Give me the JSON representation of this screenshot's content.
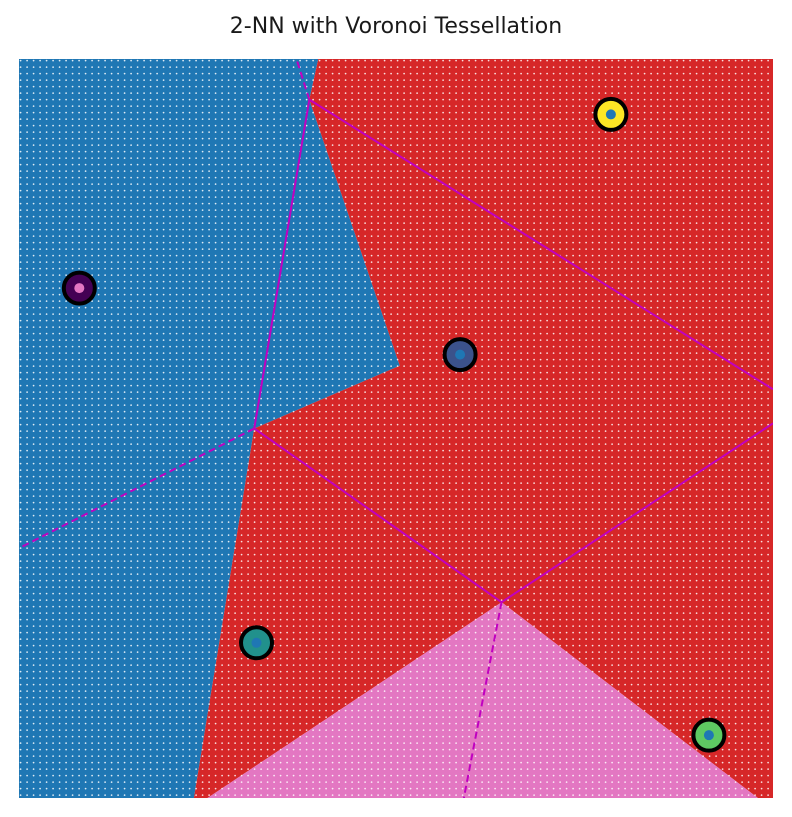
{
  "chart_data": {
    "type": "scatter",
    "title": "2-NN with Voronoi Tessellation",
    "xlabel": "",
    "ylabel": "",
    "xlim": [
      0,
      1
    ],
    "ylim": [
      0,
      1
    ],
    "axes_visible": false,
    "grid": false,
    "region_colors": {
      "A": "#1f77b4",
      "B": "#d62728",
      "C": "#e377c2"
    },
    "sites": [
      {
        "x": 0.08,
        "y": 0.69,
        "fill": "#440154",
        "center_class": "C"
      },
      {
        "x": 0.785,
        "y": 0.925,
        "fill": "#fde725",
        "center_class": "A"
      },
      {
        "x": 0.585,
        "y": 0.6,
        "fill": "#3b528b",
        "center_class": "A"
      },
      {
        "x": 0.315,
        "y": 0.21,
        "fill": "#21918c",
        "center_class": "A"
      },
      {
        "x": 0.915,
        "y": 0.085,
        "fill": "#5ec962",
        "center_class": "A"
      }
    ],
    "voronoi_vertices": [
      {
        "x": 0.385,
        "y": 0.945
      },
      {
        "x": 0.312,
        "y": 0.5
      },
      {
        "x": 0.64,
        "y": 0.265
      }
    ],
    "voronoi_edges": [
      {
        "from": [
          0.385,
          0.945
        ],
        "to": [
          0.312,
          0.5
        ],
        "style": "solid"
      },
      {
        "from": [
          0.385,
          0.945
        ],
        "to": [
          1.0,
          0.553
        ],
        "style": "solid"
      },
      {
        "from": [
          0.312,
          0.5
        ],
        "to": [
          0.64,
          0.265
        ],
        "style": "solid"
      },
      {
        "from": [
          0.64,
          0.265
        ],
        "to": [
          1.0,
          0.507
        ],
        "style": "solid"
      },
      {
        "from": [
          0.385,
          0.945
        ],
        "to": [
          0.368,
          1.0
        ],
        "style": "dashed"
      },
      {
        "from": [
          0.312,
          0.5
        ],
        "to": [
          0.0,
          0.338
        ],
        "style": "dashed"
      },
      {
        "from": [
          0.64,
          0.265
        ],
        "to": [
          0.59,
          0.0
        ],
        "style": "dashed"
      }
    ],
    "decision_regions": [
      {
        "class": "A",
        "polygon": [
          [
            0,
            1
          ],
          [
            0.397,
            1
          ],
          [
            0.385,
            0.945
          ],
          [
            0.505,
            0.585
          ],
          [
            0.312,
            0.5
          ],
          [
            0.232,
            0
          ],
          [
            0,
            0
          ]
        ]
      },
      {
        "class": "B",
        "polygon": [
          [
            0.397,
            1
          ],
          [
            1,
            1
          ],
          [
            1,
            0
          ],
          [
            0.98,
            0
          ],
          [
            0.64,
            0.265
          ],
          [
            0.25,
            0
          ],
          [
            0.232,
            0
          ],
          [
            0.312,
            0.5
          ],
          [
            0.505,
            0.585
          ],
          [
            0.385,
            0.945
          ]
        ]
      },
      {
        "class": "C",
        "polygon": [
          [
            0.25,
            0
          ],
          [
            0.64,
            0.265
          ],
          [
            0.98,
            0
          ],
          [
            0.25,
            0
          ]
        ]
      }
    ]
  }
}
